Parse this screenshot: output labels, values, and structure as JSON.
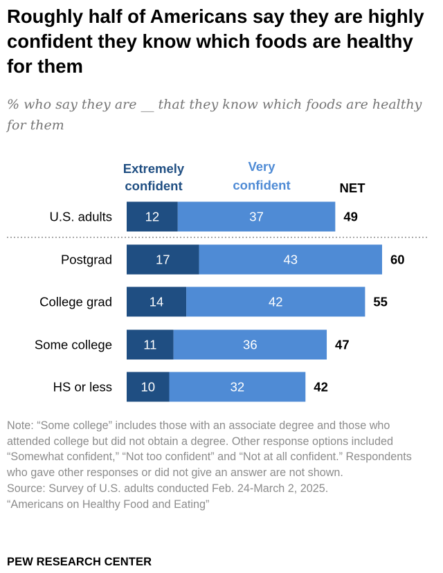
{
  "title": "Roughly half of Americans say they are highly confident they know which foods are healthy for them",
  "subtitle": "% who say they are __ that they know which foods are healthy for them",
  "colors": {
    "extremely": "#1f4e82",
    "very": "#4f8bd5",
    "extremely_label": "#1f4e82",
    "very_label": "#4f8bd5"
  },
  "chart_data": {
    "type": "bar",
    "orientation": "horizontal",
    "stacked": true,
    "categories": [
      "U.S. adults",
      "Postgrad",
      "College grad",
      "Some college",
      "HS or less"
    ],
    "series": [
      {
        "name": "Extremely confident",
        "values": [
          12,
          17,
          14,
          11,
          10
        ]
      },
      {
        "name": "Very confident",
        "values": [
          37,
          43,
          42,
          36,
          32
        ]
      }
    ],
    "net_label": "NET",
    "net": [
      49,
      60,
      55,
      47,
      42
    ],
    "separator_after": "U.S. adults"
  },
  "legend": {
    "extremely": [
      "Extremely",
      "confident"
    ],
    "very": [
      "Very",
      "confident"
    ]
  },
  "notes": {
    "note": "Note: “Some college” includes those with an associate degree and those who attended college but did not obtain a degree. Other response options included “Somewhat confident,” “Not too confident” and “Not at all confident.” Respondents who gave other responses or did not give an answer are not shown.",
    "source": "Source: Survey of U.S. adults conducted Feb. 24-March 2, 2025.",
    "report": "“Americans on Healthy Food and Eating”"
  },
  "brand": "PEW RESEARCH CENTER"
}
